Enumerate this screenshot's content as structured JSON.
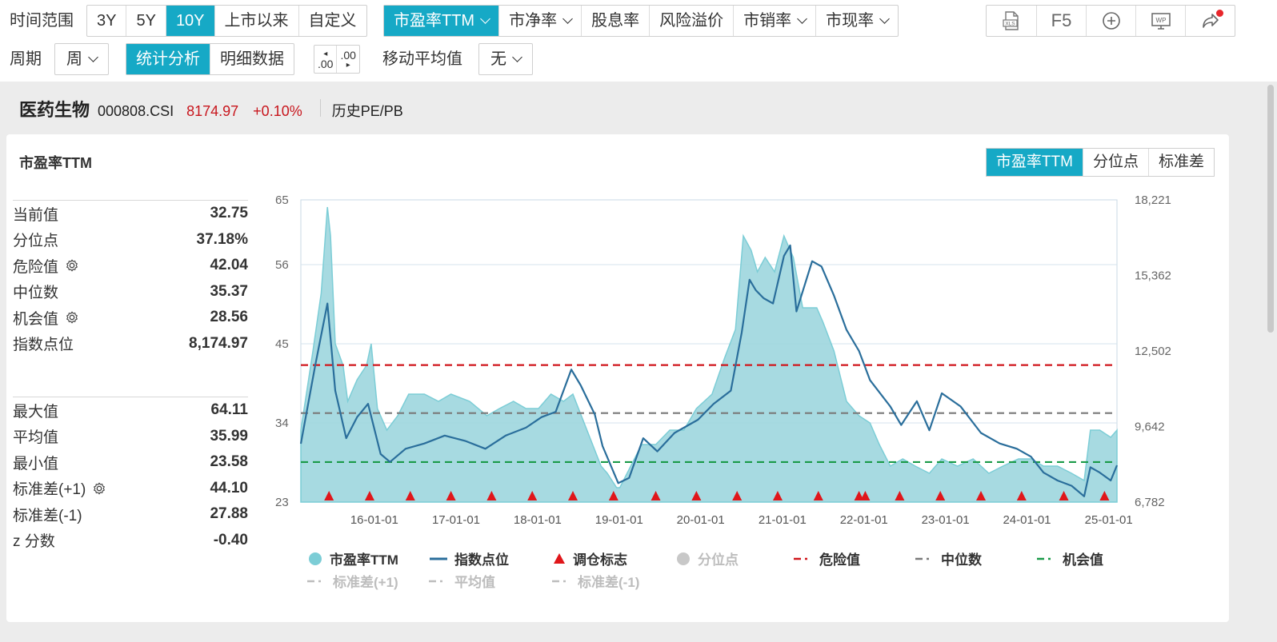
{
  "toolbar": {
    "range_label": "时间范围",
    "range_buttons": [
      "3Y",
      "5Y",
      "10Y",
      "上市以来",
      "自定义"
    ],
    "range_active": 2,
    "metric_buttons": [
      "市盈率TTM",
      "市净率",
      "股息率",
      "风险溢价",
      "市销率",
      "市现率"
    ],
    "metric_dropdown": [
      true,
      true,
      false,
      false,
      true,
      true
    ],
    "metric_active": 0,
    "f5_label": "F5",
    "period_label": "周期",
    "period_value": "周",
    "view_buttons": [
      "统计分析",
      "明细数据"
    ],
    "view_active": 0,
    "decimal_inc": ".00",
    "decimal_dec": ".00",
    "ma_label": "移动平均值",
    "ma_value": "无"
  },
  "header": {
    "name": "医药生物",
    "code": "000808.CSI",
    "price": "8174.97",
    "change": "+0.10%",
    "hist_link": "历史PE/PB"
  },
  "panel": {
    "title": "市盈率TTM",
    "tabs": [
      "市盈率TTM",
      "分位点",
      "标准差"
    ],
    "tab_active": 0
  },
  "stats_top": [
    {
      "label": "当前值",
      "value": "32.75",
      "gear": false
    },
    {
      "label": "分位点",
      "value": "37.18%",
      "gear": false
    },
    {
      "label": "危险值",
      "value": "42.04",
      "gear": true
    },
    {
      "label": "中位数",
      "value": "35.37",
      "gear": false
    },
    {
      "label": "机会值",
      "value": "28.56",
      "gear": true
    },
    {
      "label": "指数点位",
      "value": "8,174.97",
      "gear": false
    }
  ],
  "stats_bottom": [
    {
      "label": "最大值",
      "value": "64.11",
      "gear": false
    },
    {
      "label": "平均值",
      "value": "35.99",
      "gear": false
    },
    {
      "label": "最小值",
      "value": "23.58",
      "gear": false
    },
    {
      "label": "标准差(+1)",
      "value": "44.10",
      "gear": true
    },
    {
      "label": "标准差(-1)",
      "value": "27.88",
      "gear": false
    },
    {
      "label": "z 分数",
      "value": "-0.40",
      "gear": false
    }
  ],
  "legend": [
    {
      "label": "市盈率TTM",
      "kind": "circle",
      "color": "#7ccdd6",
      "active": true
    },
    {
      "label": "指数点位",
      "kind": "line",
      "color": "#2a6e9b",
      "active": true
    },
    {
      "label": "调仓标志",
      "kind": "triangle",
      "color": "#e0161a",
      "active": true
    },
    {
      "label": "分位点",
      "kind": "circle",
      "color": "#c8c8c8",
      "active": false
    },
    {
      "label": "危险值",
      "kind": "dash",
      "color": "#d0161c",
      "active": true
    },
    {
      "label": "中位数",
      "kind": "dash",
      "color": "#7a7a7a",
      "active": true
    },
    {
      "label": "机会值",
      "kind": "dash",
      "color": "#1a9a48",
      "active": true
    },
    {
      "label": "标准差(+1)",
      "kind": "dash",
      "color": "#bdbdbd",
      "active": false
    },
    {
      "label": "平均值",
      "kind": "dash",
      "color": "#bdbdbd",
      "active": false
    },
    {
      "label": "标准差(-1)",
      "kind": "dash",
      "color": "#bdbdbd",
      "active": false
    }
  ],
  "colors": {
    "accent": "#16a9c6",
    "pe_fill": "#9dd6de",
    "pe_stroke": "#7ccdd6",
    "index_line": "#2a6e9b",
    "danger": "#d0161c",
    "median": "#7a7a7a",
    "opportunity": "#1a9a48",
    "marker": "#e0161a",
    "price_red": "#c8161d"
  },
  "chart_data": {
    "type": "area",
    "title": "市盈率TTM",
    "x_range": [
      "2015-02-06",
      "2025-02-07"
    ],
    "x_ticks": [
      "16-01-01",
      "17-01-01",
      "18-01-01",
      "19-01-01",
      "20-01-01",
      "21-01-01",
      "22-01-01",
      "23-01-01",
      "24-01-01",
      "25-01-01"
    ],
    "y_left": {
      "range": [
        23,
        65
      ],
      "ticks": [
        "65",
        "56",
        "45",
        "34",
        "23"
      ]
    },
    "y_right": {
      "range": [
        6782,
        18221
      ],
      "ticks": [
        "18,221",
        "15,362",
        "12,502",
        "9,642",
        "6,782"
      ]
    },
    "reference_lines": [
      {
        "name": "危险值",
        "value": 42.04
      },
      {
        "name": "中位数",
        "value": 35.37
      },
      {
        "name": "机会值",
        "value": 28.56
      }
    ],
    "series": [
      {
        "name": "市盈率TTM",
        "axis": "left",
        "points": [
          [
            "2015-02-06",
            33
          ],
          [
            "2015-04-01",
            44
          ],
          [
            "2015-05-08",
            52
          ],
          [
            "2015-06-05",
            64
          ],
          [
            "2015-06-19",
            60
          ],
          [
            "2015-07-10",
            45
          ],
          [
            "2015-08-14",
            42
          ],
          [
            "2015-09-04",
            37
          ],
          [
            "2015-10-16",
            40
          ],
          [
            "2015-11-27",
            42
          ],
          [
            "2015-12-18",
            45
          ],
          [
            "2016-01-15",
            36
          ],
          [
            "2016-02-26",
            33
          ],
          [
            "2016-04-15",
            35
          ],
          [
            "2016-06-03",
            38
          ],
          [
            "2016-08-12",
            38
          ],
          [
            "2016-10-14",
            37
          ],
          [
            "2016-12-09",
            38
          ],
          [
            "2017-03-03",
            37
          ],
          [
            "2017-05-19",
            35
          ],
          [
            "2017-07-14",
            36
          ],
          [
            "2017-09-15",
            37
          ],
          [
            "2017-11-10",
            36
          ],
          [
            "2018-01-05",
            36
          ],
          [
            "2018-03-02",
            38
          ],
          [
            "2018-04-27",
            37
          ],
          [
            "2018-06-08",
            38
          ],
          [
            "2018-08-10",
            33
          ],
          [
            "2018-10-12",
            28
          ],
          [
            "2018-11-09",
            27
          ],
          [
            "2018-12-21",
            25
          ],
          [
            "2019-01-04",
            25
          ],
          [
            "2019-02-22",
            28
          ],
          [
            "2019-04-12",
            31
          ],
          [
            "2019-06-14",
            31
          ],
          [
            "2019-08-16",
            33
          ],
          [
            "2019-10-18",
            33
          ],
          [
            "2019-12-13",
            36
          ],
          [
            "2020-02-21",
            38
          ],
          [
            "2020-04-17",
            43
          ],
          [
            "2020-06-05",
            47
          ],
          [
            "2020-07-10",
            60
          ],
          [
            "2020-08-14",
            58
          ],
          [
            "2020-09-11",
            55
          ],
          [
            "2020-10-16",
            57
          ],
          [
            "2020-11-27",
            55
          ],
          [
            "2021-01-08",
            60
          ],
          [
            "2021-02-19",
            57
          ],
          [
            "2021-04-02",
            50
          ],
          [
            "2021-06-04",
            50
          ],
          [
            "2021-07-02",
            48
          ],
          [
            "2021-08-20",
            44
          ],
          [
            "2021-10-15",
            37
          ],
          [
            "2021-12-10",
            35
          ],
          [
            "2022-01-28",
            34
          ],
          [
            "2022-03-11",
            31
          ],
          [
            "2022-04-29",
            28
          ],
          [
            "2022-06-24",
            29
          ],
          [
            "2022-08-19",
            28
          ],
          [
            "2022-10-21",
            27
          ],
          [
            "2022-12-16",
            29
          ],
          [
            "2023-02-24",
            28
          ],
          [
            "2023-05-05",
            29
          ],
          [
            "2023-07-14",
            27
          ],
          [
            "2023-09-15",
            28
          ],
          [
            "2023-11-24",
            29
          ],
          [
            "2024-01-19",
            29
          ],
          [
            "2024-03-15",
            28
          ],
          [
            "2024-05-17",
            28
          ],
          [
            "2024-07-19",
            27
          ],
          [
            "2024-09-13",
            26
          ],
          [
            "2024-10-11",
            33
          ],
          [
            "2024-11-22",
            33
          ],
          [
            "2025-01-10",
            32
          ],
          [
            "2025-02-07",
            33
          ]
        ]
      },
      {
        "name": "指数点位",
        "axis": "right",
        "points": [
          [
            "2015-02-06",
            8990
          ],
          [
            "2015-04-10",
            11900
          ],
          [
            "2015-06-05",
            14300
          ],
          [
            "2015-07-10",
            11000
          ],
          [
            "2015-08-28",
            9200
          ],
          [
            "2015-10-16",
            10000
          ],
          [
            "2015-12-04",
            10500
          ],
          [
            "2016-01-29",
            8600
          ],
          [
            "2016-03-11",
            8300
          ],
          [
            "2016-05-20",
            8800
          ],
          [
            "2016-08-12",
            9000
          ],
          [
            "2016-11-11",
            9300
          ],
          [
            "2017-02-10",
            9100
          ],
          [
            "2017-05-12",
            8800
          ],
          [
            "2017-08-11",
            9300
          ],
          [
            "2017-11-10",
            9600
          ],
          [
            "2018-01-19",
            10000
          ],
          [
            "2018-03-23",
            10200
          ],
          [
            "2018-06-01",
            11800
          ],
          [
            "2018-07-13",
            11200
          ],
          [
            "2018-09-14",
            10100
          ],
          [
            "2018-10-19",
            8900
          ],
          [
            "2018-12-28",
            7500
          ],
          [
            "2019-02-15",
            7700
          ],
          [
            "2019-04-19",
            9200
          ],
          [
            "2019-06-21",
            8700
          ],
          [
            "2019-09-06",
            9400
          ],
          [
            "2019-12-20",
            9900
          ],
          [
            "2020-02-28",
            10500
          ],
          [
            "2020-05-15",
            11000
          ],
          [
            "2020-07-03",
            13200
          ],
          [
            "2020-08-07",
            15200
          ],
          [
            "2020-09-04",
            14800
          ],
          [
            "2020-10-09",
            14500
          ],
          [
            "2020-11-20",
            14300
          ],
          [
            "2021-01-08",
            16100
          ],
          [
            "2021-02-05",
            16500
          ],
          [
            "2021-03-05",
            14000
          ],
          [
            "2021-05-14",
            15900
          ],
          [
            "2021-06-25",
            15700
          ],
          [
            "2021-08-20",
            14600
          ],
          [
            "2021-10-15",
            13300
          ],
          [
            "2021-12-10",
            12500
          ],
          [
            "2022-01-28",
            11400
          ],
          [
            "2022-04-29",
            10400
          ],
          [
            "2022-06-17",
            9700
          ],
          [
            "2022-08-26",
            10600
          ],
          [
            "2022-10-21",
            9500
          ],
          [
            "2022-12-16",
            10900
          ],
          [
            "2023-03-10",
            10400
          ],
          [
            "2023-06-09",
            9400
          ],
          [
            "2023-09-01",
            9000
          ],
          [
            "2023-11-17",
            8800
          ],
          [
            "2024-01-19",
            8500
          ],
          [
            "2024-03-15",
            7900
          ],
          [
            "2024-05-17",
            7600
          ],
          [
            "2024-07-19",
            7400
          ],
          [
            "2024-09-13",
            7000
          ],
          [
            "2024-10-11",
            8100
          ],
          [
            "2024-11-22",
            7900
          ],
          [
            "2025-01-10",
            7600
          ],
          [
            "2025-02-07",
            8175
          ]
        ]
      }
    ],
    "markers": {
      "name": "调仓标志",
      "dates": [
        "2015-06-12",
        "2015-12-11",
        "2016-06-10",
        "2016-12-09",
        "2017-06-09",
        "2017-12-08",
        "2018-06-08",
        "2018-12-07",
        "2019-06-14",
        "2019-12-13",
        "2020-06-12",
        "2020-12-11",
        "2021-06-11",
        "2021-12-10",
        "2022-01-07",
        "2022-06-10",
        "2022-12-09",
        "2023-06-09",
        "2023-12-08",
        "2024-06-14",
        "2024-12-13"
      ]
    }
  }
}
